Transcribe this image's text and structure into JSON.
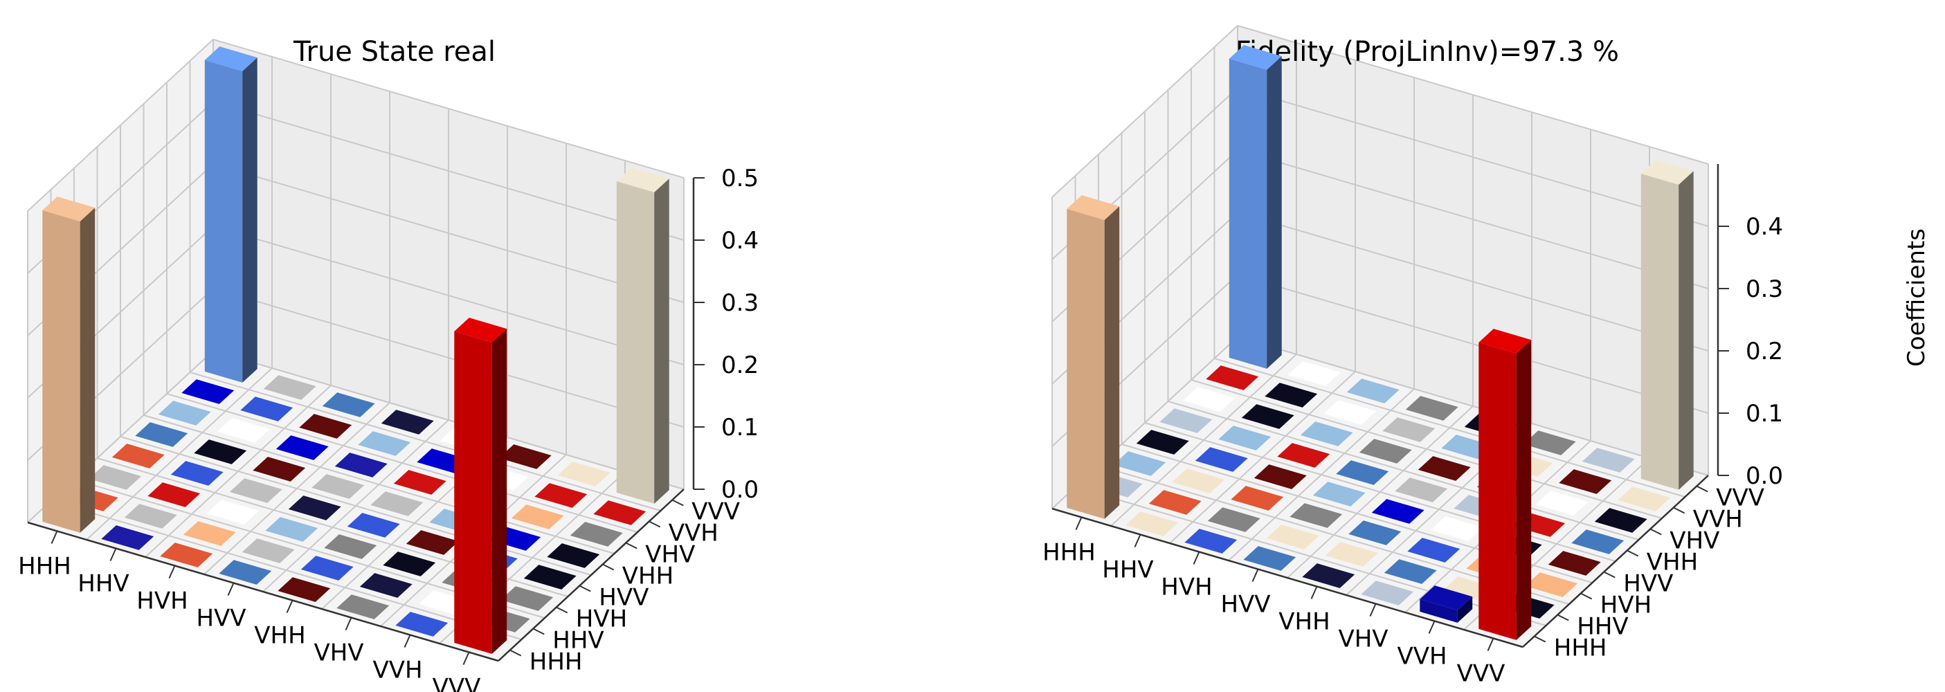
{
  "chart_data": [
    {
      "type": "bar3d",
      "title": "True State real",
      "x_categories": [
        "HHH",
        "HHV",
        "HVH",
        "HVV",
        "VHH",
        "VHV",
        "VVH",
        "VVV"
      ],
      "y_categories": [
        "HHH",
        "HHV",
        "HVH",
        "HVV",
        "VHH",
        "VHV",
        "VVH",
        "VVV"
      ],
      "zlabel": "",
      "zticks": [
        "0.0",
        "0.1",
        "0.2",
        "0.3",
        "0.4",
        "0.5"
      ],
      "zlim": [
        0,
        0.5
      ],
      "bars": [
        {
          "x": 0,
          "y": 0,
          "value": 0.5,
          "color": "#e4b48c"
        },
        {
          "x": 0,
          "y": 7,
          "value": 0.5,
          "color": "#6496e6"
        },
        {
          "x": 7,
          "y": 0,
          "value": 0.5,
          "color": "#d40000"
        },
        {
          "x": 7,
          "y": 7,
          "value": 0.5,
          "color": "#e0d8c4"
        }
      ]
    },
    {
      "type": "bar3d",
      "title": "Fidelity (ProjLinInv)=97.3 %",
      "x_categories": [
        "HHH",
        "HHV",
        "HVH",
        "HVV",
        "VHH",
        "VHV",
        "VVH",
        "VVV"
      ],
      "y_categories": [
        "HHH",
        "HHV",
        "HVH",
        "HVV",
        "VHH",
        "VHV",
        "VVH",
        "VVV"
      ],
      "zlabel": "Coefficients",
      "zticks": [
        "0.0",
        "0.1",
        "0.2",
        "0.3",
        "0.4"
      ],
      "zlim": [
        0,
        0.5
      ],
      "bars": [
        {
          "x": 0,
          "y": 0,
          "value": 0.48,
          "color": "#e4b48c"
        },
        {
          "x": 0,
          "y": 7,
          "value": 0.48,
          "color": "#6496e6"
        },
        {
          "x": 7,
          "y": 0,
          "value": 0.46,
          "color": "#d40000"
        },
        {
          "x": 7,
          "y": 7,
          "value": 0.49,
          "color": "#e0d8c4"
        },
        {
          "x": 6,
          "y": 0,
          "value": 0.02,
          "color": "#0a0aa0"
        }
      ]
    }
  ]
}
